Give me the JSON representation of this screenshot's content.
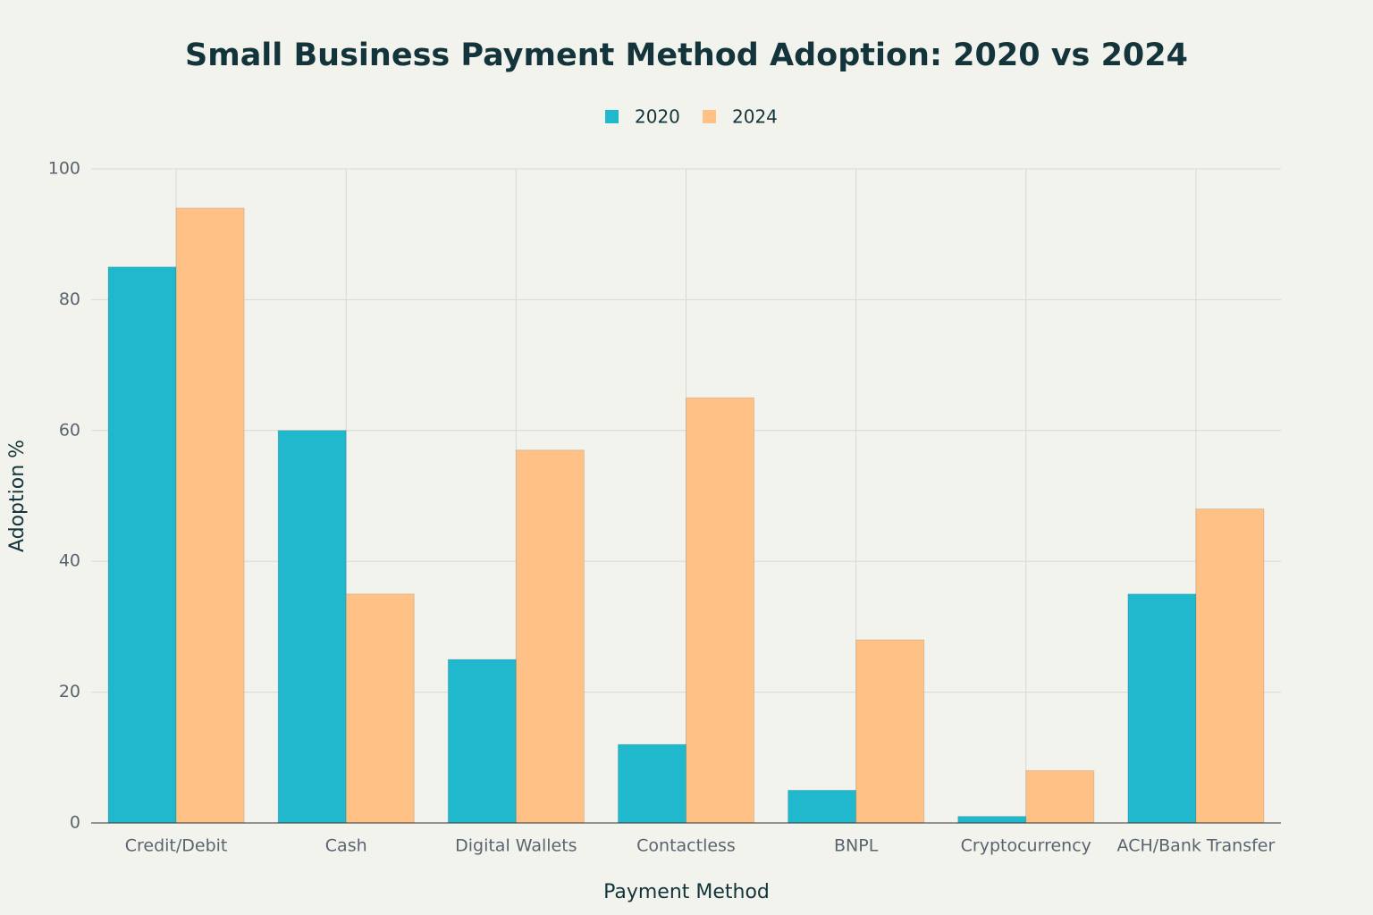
{
  "chart_data": {
    "type": "bar",
    "title": "Small Business Payment Method Adoption: 2020 vs 2024",
    "x_label": "Payment Method",
    "y_label": "Adoption %",
    "categories": [
      "Credit/Debit",
      "Cash",
      "Digital Wallets",
      "Contactless",
      "BNPL",
      "Cryptocurrency",
      "ACH/Bank Transfer"
    ],
    "series": [
      {
        "name": "2020",
        "color": "#1fb8cd",
        "values": [
          85,
          60,
          25,
          12,
          5,
          1,
          35
        ]
      },
      {
        "name": "2024",
        "color": "#ffc185",
        "values": [
          94,
          35,
          57,
          65,
          28,
          8,
          48
        ]
      }
    ],
    "ylim": [
      0,
      100
    ],
    "yticks": [
      0,
      20,
      40,
      60,
      80,
      100
    ],
    "grid": true,
    "legend": "top"
  }
}
